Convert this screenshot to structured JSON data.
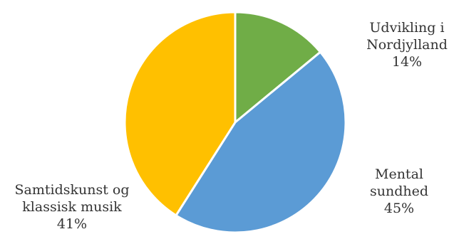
{
  "chart_data": {
    "type": "pie",
    "title": "",
    "slices": [
      {
        "label_lines": [
          "Udvikling i",
          "Nordjylland"
        ],
        "value": 14,
        "value_label": "14%",
        "color": "#70ad47"
      },
      {
        "label_lines": [
          "Mental",
          "sundhed"
        ],
        "value": 45,
        "value_label": "45%",
        "color": "#5b9bd5"
      },
      {
        "label_lines": [
          "Samtidskunst og",
          "klassisk musik"
        ],
        "value": 41,
        "value_label": "41%",
        "color": "#ffc000"
      }
    ],
    "start_angle": "12 o'clock",
    "direction": "clockwise",
    "slice_border_color": "#ffffff",
    "legend": "none",
    "data_labels": "outside"
  }
}
